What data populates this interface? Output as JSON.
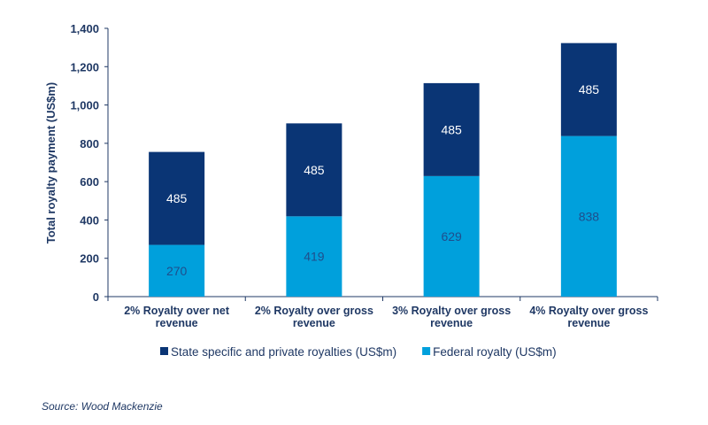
{
  "chart_data": {
    "type": "bar",
    "stacked": true,
    "title": "",
    "xlabel": "",
    "ylabel": "Total royalty payment (US$m)",
    "ylim": [
      0,
      1400
    ],
    "yticks": [
      0,
      200,
      400,
      600,
      800,
      1000,
      1200,
      1400
    ],
    "ytick_labels": [
      "0",
      "200",
      "400",
      "600",
      "800",
      "1,000",
      "1,200",
      "1,400"
    ],
    "categories": [
      [
        "2% Royalty over net",
        "revenue"
      ],
      [
        "2% Royalty over gross",
        "revenue"
      ],
      [
        "3% Royalty over gross",
        "revenue"
      ],
      [
        "4% Royalty over gross",
        "revenue"
      ]
    ],
    "series": [
      {
        "name": "Federal royalty (US$m)",
        "values": [
          270,
          419,
          629,
          838
        ],
        "color": "#00a0dc",
        "label_color": "#1f4e8c"
      },
      {
        "name": "State specific and private royalties (US$m)",
        "values": [
          485,
          485,
          485,
          485
        ],
        "color": "#0a3575",
        "label_color": "#ffffff"
      }
    ],
    "legend_order": [
      1,
      0
    ],
    "legend_position": "bottom",
    "grid": false
  },
  "source": "Source: Wood Mackenzie"
}
